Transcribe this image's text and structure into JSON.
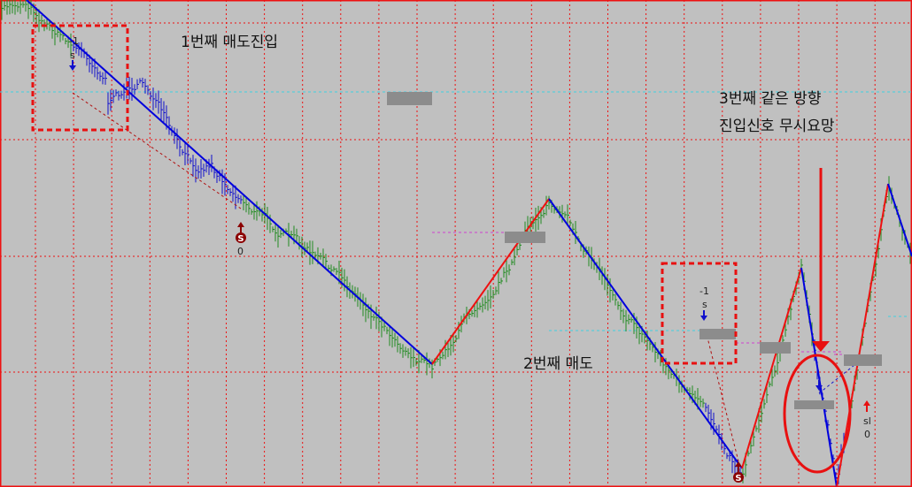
{
  "chart_data": {
    "type": "ohlc",
    "title": "",
    "xlabel": "",
    "ylabel": "",
    "grid": true,
    "zigzag_colors": {
      "down": "#0000dd",
      "up": "#ee1111"
    },
    "bar_colors": {
      "normal": "#1f8a1f",
      "short_position": "#1010cc"
    },
    "grid_color": "#ee1111",
    "annotations": {
      "first_sell": "1번째 매도진입",
      "second_sell": "2번째 매도",
      "third_line1": "3번째 같은 방향",
      "third_line2": "진입신호 무시요망"
    },
    "markers": {
      "sell1_pos": "-1",
      "sell1_label": "s",
      "exit1_icon": "S",
      "exit1_pos": "0",
      "sell2_pos": "-1",
      "sell2_label": "s",
      "exit2_icon": "S",
      "sl_label": "sl",
      "sl_pos": "0"
    }
  }
}
